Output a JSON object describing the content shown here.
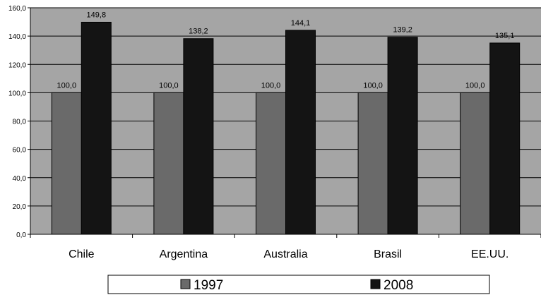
{
  "chart_data": {
    "type": "bar",
    "categories": [
      "Chile",
      "Argentina",
      "Australia",
      "Brasil",
      "EE.UU."
    ],
    "series": [
      {
        "name": "1997",
        "values": [
          100.0,
          100.0,
          100.0,
          100.0,
          100.0
        ],
        "labels": [
          "100,0",
          "100,0",
          "100,0",
          "100,0",
          "100,0"
        ],
        "color": "#6a6a6a"
      },
      {
        "name": "2008",
        "values": [
          149.8,
          138.2,
          144.1,
          139.2,
          135.1
        ],
        "labels": [
          "149,8",
          "138,2",
          "144,1",
          "139,2",
          "135,1"
        ],
        "color": "#141414"
      }
    ],
    "ylim": [
      0,
      160
    ],
    "yticks": [
      0,
      20,
      40,
      60,
      80,
      100,
      120,
      140,
      160
    ],
    "ytick_labels": [
      "0,0",
      "20,0",
      "40,0",
      "60,0",
      "80,0",
      "100,0",
      "120,0",
      "140,0",
      "160,0"
    ],
    "grid": true,
    "plot_background": "#a5a5a5",
    "legend_position": "bottom-center",
    "title": "",
    "xlabel": "",
    "ylabel": ""
  }
}
